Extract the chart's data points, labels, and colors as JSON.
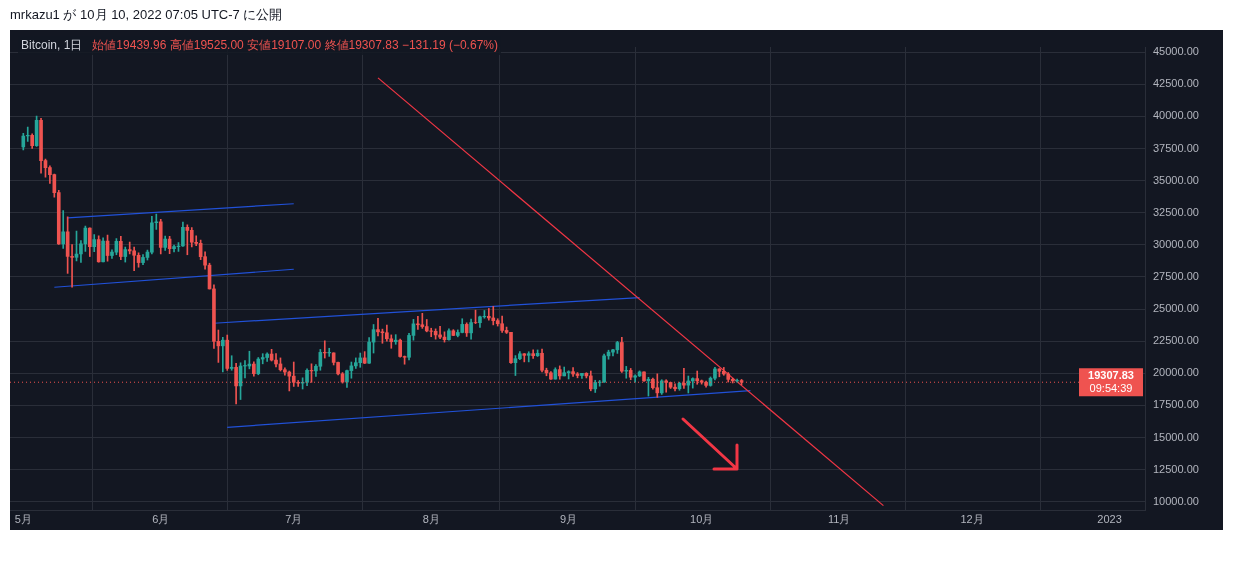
{
  "chart_data": {
    "type": "candlestick",
    "title": "Bitcoin, 1日",
    "subtitle": "始値19439.96 高値19525.00 安値19107.00 終値19307.83 −131.19 (−0.67%)",
    "annotations": [
      "mrkazu1 が 10月 10, 2022 07:05 UTC-7 に公開",
      "09:54:39"
    ],
    "colors": [
      "#26a69a",
      "#26a69a",
      "#ef5350",
      "#26a69a",
      "#ef5350",
      "#ef5350",
      "#ef5350",
      "#ef5350",
      "#ef5350",
      "#26a69a",
      "#ef5350",
      "#ef5350",
      "#26a69a",
      "#26a69a",
      "#26a69a",
      "#ef5350",
      "#26a69a",
      "#ef5350",
      "#26a69a",
      "#ef5350",
      "#26a69a",
      "#26a69a",
      "#ef5350",
      "#26a69a",
      "#ef5350",
      "#ef5350",
      "#ef5350",
      "#26a69a",
      "#26a69a",
      "#26a69a",
      "#26a69a",
      "#ef5350",
      "#26a69a",
      "#ef5350",
      "#26a69a",
      "#26a69a",
      "#26a69a",
      "#ef5350",
      "#ef5350",
      "#ef5350",
      "#ef5350",
      "#ef5350",
      "#ef5350",
      "#ef5350",
      "#ef5350",
      "#26a69a",
      "#ef5350",
      "#26a69a",
      "#ef5350",
      "#26a69a",
      "#26a69a",
      "#26a69a",
      "#ef5350",
      "#26a69a",
      "#26a69a",
      "#26a69a",
      "#ef5350",
      "#ef5350",
      "#ef5350",
      "#ef5350",
      "#ef5350",
      "#ef5350",
      "#ef5350",
      "#26a69a",
      "#26a69a",
      "#ef5350",
      "#26a69a",
      "#26a69a",
      "#ef5350",
      "#26a69a",
      "#ef5350",
      "#ef5350",
      "#ef5350",
      "#26a69a",
      "#26a69a",
      "#26a69a",
      "#26a69a",
      "#ef5350",
      "#26a69a",
      "#26a69a",
      "#ef5350",
      "#ef5350",
      "#ef5350",
      "#ef5350",
      "#26a69a",
      "#ef5350",
      "#ef5350",
      "#26a69a",
      "#26a69a",
      "#ef5350",
      "#ef5350",
      "#ef5350",
      "#ef5350",
      "#ef5350",
      "#ef5350",
      "#ef5350",
      "#26a69a",
      "#ef5350",
      "#26a69a",
      "#26a69a",
      "#ef5350",
      "#26a69a",
      "#ef5350",
      "#26a69a",
      "#26a69a",
      "#ef5350",
      "#ef5350",
      "#ef5350",
      "#ef5350",
      "#ef5350",
      "#ef5350",
      "#26a69a",
      "#26a69a",
      "#ef5350",
      "#26a69a",
      "#ef5350",
      "#26a69a",
      "#ef5350",
      "#ef5350",
      "#ef5350",
      "#26a69a",
      "#ef5350",
      "#26a69a",
      "#26a69a",
      "#ef5350",
      "#ef5350",
      "#26a69a",
      "#ef5350",
      "#ef5350",
      "#26a69a",
      "#26a69a",
      "#26a69a",
      "#26a69a",
      "#26a69a",
      "#26a69a",
      "#ef5350",
      "#26a69a",
      "#ef5350",
      "#26a69a",
      "#26a69a",
      "#ef5350",
      "#26a69a",
      "#ef5350",
      "#ef5350",
      "#26a69a",
      "#ef5350",
      "#ef5350",
      "#ef5350",
      "#26a69a",
      "#ef5350",
      "#26a69a",
      "#26a69a",
      "#ef5350",
      "#ef5350",
      "#ef5350",
      "#26a69a",
      "#26a69a",
      "#ef5350",
      "#ef5350",
      "#ef5350",
      "#ef5350",
      "#26a69a",
      "#ef5350"
    ],
    "x": [
      "2022-05-01",
      "2022-05-02",
      "2022-05-03",
      "2022-05-04",
      "2022-05-05",
      "2022-05-06",
      "2022-05-07",
      "2022-05-08",
      "2022-05-09",
      "2022-05-10",
      "2022-05-11",
      "2022-05-12",
      "2022-05-13",
      "2022-05-14",
      "2022-05-15",
      "2022-05-16",
      "2022-05-17",
      "2022-05-18",
      "2022-05-19",
      "2022-05-20",
      "2022-05-21",
      "2022-05-22",
      "2022-05-23",
      "2022-05-24",
      "2022-05-25",
      "2022-05-26",
      "2022-05-27",
      "2022-05-28",
      "2022-05-29",
      "2022-05-30",
      "2022-05-31",
      "2022-06-01",
      "2022-06-02",
      "2022-06-03",
      "2022-06-04",
      "2022-06-05",
      "2022-06-06",
      "2022-06-07",
      "2022-06-08",
      "2022-06-09",
      "2022-06-10",
      "2022-06-11",
      "2022-06-12",
      "2022-06-13",
      "2022-06-14",
      "2022-06-15",
      "2022-06-16",
      "2022-06-17",
      "2022-06-18",
      "2022-06-19",
      "2022-06-20",
      "2022-06-21",
      "2022-06-22",
      "2022-06-23",
      "2022-06-24",
      "2022-06-25",
      "2022-06-26",
      "2022-06-27",
      "2022-06-28",
      "2022-06-29",
      "2022-06-30",
      "2022-07-01",
      "2022-07-02",
      "2022-07-03",
      "2022-07-04",
      "2022-07-05",
      "2022-07-06",
      "2022-07-07",
      "2022-07-08",
      "2022-07-09",
      "2022-07-10",
      "2022-07-11",
      "2022-07-12",
      "2022-07-13",
      "2022-07-14",
      "2022-07-15",
      "2022-07-16",
      "2022-07-17",
      "2022-07-18",
      "2022-07-19",
      "2022-07-20",
      "2022-07-21",
      "2022-07-22",
      "2022-07-23",
      "2022-07-24",
      "2022-07-25",
      "2022-07-26",
      "2022-07-27",
      "2022-07-28",
      "2022-07-29",
      "2022-07-30",
      "2022-07-31",
      "2022-08-01",
      "2022-08-02",
      "2022-08-03",
      "2022-08-04",
      "2022-08-05",
      "2022-08-06",
      "2022-08-07",
      "2022-08-08",
      "2022-08-09",
      "2022-08-10",
      "2022-08-11",
      "2022-08-12",
      "2022-08-13",
      "2022-08-14",
      "2022-08-15",
      "2022-08-16",
      "2022-08-17",
      "2022-08-18",
      "2022-08-19",
      "2022-08-20",
      "2022-08-21",
      "2022-08-22",
      "2022-08-23",
      "2022-08-24",
      "2022-08-25",
      "2022-08-26",
      "2022-08-27",
      "2022-08-28",
      "2022-08-29",
      "2022-08-30",
      "2022-08-31",
      "2022-09-01",
      "2022-09-02",
      "2022-09-03",
      "2022-09-04",
      "2022-09-05",
      "2022-09-06",
      "2022-09-07",
      "2022-09-08",
      "2022-09-09",
      "2022-09-10",
      "2022-09-11",
      "2022-09-12",
      "2022-09-13",
      "2022-09-14",
      "2022-09-15",
      "2022-09-16",
      "2022-09-17",
      "2022-09-18",
      "2022-09-19",
      "2022-09-20",
      "2022-09-21",
      "2022-09-22",
      "2022-09-23",
      "2022-09-24",
      "2022-09-25",
      "2022-09-26",
      "2022-09-27",
      "2022-09-28",
      "2022-09-29",
      "2022-09-30",
      "2022-10-01",
      "2022-10-02",
      "2022-10-03",
      "2022-10-04",
      "2022-10-05",
      "2022-10-06",
      "2022-10-07",
      "2022-10-08",
      "2022-10-09",
      "2022-10-10"
    ],
    "ohlc": [
      [
        37630,
        38680,
        37390,
        38470
      ],
      [
        38470,
        39170,
        38050,
        38530
      ],
      [
        38530,
        38650,
        37500,
        37720
      ],
      [
        37720,
        40020,
        37670,
        39690
      ],
      [
        39690,
        39850,
        35570,
        36550
      ],
      [
        36550,
        36680,
        35260,
        36010
      ],
      [
        36010,
        36150,
        34780,
        35470
      ],
      [
        35470,
        35500,
        33710,
        34060
      ],
      [
        34060,
        34240,
        30030,
        30080
      ],
      [
        30080,
        32660,
        29730,
        31010
      ],
      [
        31010,
        32190,
        27780,
        29100
      ],
      [
        29100,
        30030,
        26700,
        29030
      ],
      [
        29030,
        31080,
        28750,
        29290
      ],
      [
        29290,
        30340,
        28630,
        30080
      ],
      [
        30080,
        31460,
        29480,
        31300
      ],
      [
        31300,
        31330,
        29090,
        29860
      ],
      [
        29860,
        30790,
        29460,
        30420
      ],
      [
        30420,
        30700,
        28650,
        28680
      ],
      [
        28680,
        30550,
        28670,
        30290
      ],
      [
        30290,
        30760,
        28730,
        29170
      ],
      [
        29170,
        29620,
        28950,
        29430
      ],
      [
        29430,
        30480,
        29230,
        30270
      ],
      [
        30270,
        30660,
        28850,
        29090
      ],
      [
        29090,
        29830,
        28660,
        29640
      ],
      [
        29640,
        30220,
        29300,
        29530
      ],
      [
        29530,
        29830,
        28000,
        29190
      ],
      [
        29190,
        29380,
        28260,
        28620
      ],
      [
        28620,
        29250,
        28450,
        29020
      ],
      [
        29020,
        29600,
        28820,
        29440
      ],
      [
        29440,
        32220,
        29300,
        31720
      ],
      [
        31720,
        32400,
        31200,
        31790
      ],
      [
        31790,
        31980,
        29300,
        29800
      ],
      [
        29800,
        30690,
        29570,
        30450
      ],
      [
        30450,
        30670,
        29320,
        29700
      ],
      [
        29700,
        29990,
        29450,
        29860
      ],
      [
        29860,
        30170,
        29490,
        29910
      ],
      [
        29910,
        31770,
        29880,
        31370
      ],
      [
        31370,
        31560,
        29230,
        31130
      ],
      [
        31130,
        31340,
        29840,
        30200
      ],
      [
        30200,
        30700,
        29930,
        30110
      ],
      [
        30110,
        30380,
        28850,
        29080
      ],
      [
        29080,
        29450,
        28100,
        28420
      ],
      [
        28420,
        28570,
        26560,
        26570
      ],
      [
        26570,
        26880,
        21930,
        22490
      ],
      [
        22490,
        23370,
        20850,
        22140
      ],
      [
        22140,
        22800,
        20110,
        22580
      ],
      [
        22580,
        22980,
        20230,
        20380
      ],
      [
        20380,
        21370,
        20240,
        20470
      ],
      [
        20470,
        20770,
        17620,
        19020
      ],
      [
        19020,
        20820,
        17960,
        20570
      ],
      [
        20570,
        21000,
        19640,
        20570
      ],
      [
        20570,
        21720,
        20350,
        20720
      ],
      [
        20720,
        20900,
        19770,
        19970
      ],
      [
        19970,
        21230,
        19890,
        21110
      ],
      [
        21110,
        21530,
        20740,
        21230
      ],
      [
        21230,
        21600,
        20920,
        21500
      ],
      [
        21500,
        21870,
        20960,
        21030
      ],
      [
        21030,
        21540,
        20500,
        20730
      ],
      [
        20730,
        21200,
        20180,
        20280
      ],
      [
        20280,
        20420,
        19850,
        20100
      ],
      [
        20100,
        20180,
        18630,
        19780
      ],
      [
        19780,
        20880,
        18980,
        19300
      ],
      [
        19300,
        19440,
        18980,
        19240
      ],
      [
        19240,
        19650,
        18780,
        19300
      ],
      [
        19300,
        20350,
        19040,
        20230
      ],
      [
        20230,
        20740,
        19300,
        20190
      ],
      [
        20190,
        20680,
        19760,
        20550
      ],
      [
        20550,
        21860,
        20240,
        21630
      ],
      [
        21630,
        22530,
        21190,
        21590
      ],
      [
        21590,
        21950,
        21320,
        21590
      ],
      [
        21590,
        21600,
        20650,
        20850
      ],
      [
        20850,
        20870,
        19880,
        19960
      ],
      [
        19960,
        20060,
        19240,
        19320
      ],
      [
        19320,
        20260,
        18910,
        20210
      ],
      [
        20210,
        20880,
        19620,
        20580
      ],
      [
        20580,
        21200,
        20380,
        20830
      ],
      [
        20830,
        21580,
        20470,
        21200
      ],
      [
        21200,
        21690,
        20760,
        20790
      ],
      [
        20790,
        22790,
        20770,
        22430
      ],
      [
        22430,
        23800,
        21580,
        23400
      ],
      [
        23400,
        24280,
        22910,
        23230
      ],
      [
        23230,
        23440,
        22340,
        23160
      ],
      [
        23160,
        23760,
        22500,
        22690
      ],
      [
        22690,
        22990,
        21950,
        22460
      ],
      [
        22460,
        23010,
        22260,
        22580
      ],
      [
        22580,
        22660,
        21250,
        21310
      ],
      [
        21310,
        21350,
        20710,
        21250
      ],
      [
        21250,
        23110,
        21040,
        22950
      ],
      [
        22950,
        24200,
        22580,
        23850
      ],
      [
        23850,
        24440,
        23410,
        23780
      ],
      [
        23780,
        24670,
        23500,
        23640
      ],
      [
        23640,
        24190,
        23230,
        23300
      ],
      [
        23300,
        23510,
        22850,
        23270
      ],
      [
        23270,
        23460,
        22660,
        22990
      ],
      [
        22990,
        23650,
        22690,
        22820
      ],
      [
        22820,
        23230,
        22430,
        22620
      ],
      [
        22620,
        23470,
        22590,
        23310
      ],
      [
        23310,
        23400,
        22930,
        22950
      ],
      [
        22950,
        23380,
        22840,
        23180
      ],
      [
        23180,
        24250,
        23150,
        23810
      ],
      [
        23810,
        23930,
        22870,
        23150
      ],
      [
        23150,
        24230,
        22660,
        23950
      ],
      [
        23950,
        24920,
        23870,
        23940
      ],
      [
        23940,
        24460,
        23580,
        24400
      ],
      [
        24400,
        24890,
        24290,
        24440
      ],
      [
        24440,
        25050,
        24140,
        24310
      ],
      [
        24310,
        25210,
        23770,
        24100
      ],
      [
        24100,
        24250,
        23680,
        23860
      ],
      [
        23860,
        24450,
        23180,
        23340
      ],
      [
        23340,
        23600,
        23100,
        23190
      ],
      [
        23190,
        23200,
        20780,
        20830
      ],
      [
        20830,
        21380,
        19830,
        21140
      ],
      [
        21140,
        21690,
        21060,
        21520
      ],
      [
        21520,
        21540,
        20890,
        21400
      ],
      [
        21400,
        21680,
        20890,
        21530
      ],
      [
        21530,
        21820,
        21160,
        21370
      ],
      [
        21370,
        21820,
        21310,
        21560
      ],
      [
        21560,
        21880,
        20110,
        20240
      ],
      [
        20240,
        20400,
        19810,
        20040
      ],
      [
        20040,
        20140,
        19520,
        19550
      ],
      [
        19550,
        20430,
        19550,
        20290
      ],
      [
        20290,
        20580,
        19540,
        19800
      ],
      [
        19800,
        20490,
        19800,
        20050
      ],
      [
        20050,
        20200,
        19560,
        20130
      ],
      [
        20130,
        20440,
        19750,
        19950
      ],
      [
        19950,
        20060,
        19650,
        19830
      ],
      [
        19830,
        20000,
        19600,
        20000
      ],
      [
        20000,
        20050,
        19640,
        19800
      ],
      [
        19800,
        20180,
        18640,
        18790
      ],
      [
        18790,
        19460,
        18510,
        19290
      ],
      [
        19290,
        19450,
        19000,
        19320
      ],
      [
        19320,
        21500,
        19300,
        21360
      ],
      [
        21360,
        21800,
        21100,
        21650
      ],
      [
        21650,
        21860,
        21350,
        21830
      ],
      [
        21830,
        22490,
        21550,
        22400
      ],
      [
        22400,
        22800,
        20080,
        20170
      ],
      [
        20170,
        20540,
        19620,
        20230
      ],
      [
        20230,
        20380,
        19500,
        19700
      ],
      [
        19700,
        19890,
        19320,
        19800
      ],
      [
        19800,
        20190,
        19750,
        20110
      ],
      [
        20110,
        20110,
        19370,
        19420
      ],
      [
        19420,
        19690,
        18230,
        19540
      ],
      [
        19540,
        19630,
        18760,
        18880
      ],
      [
        18880,
        19960,
        18130,
        18480
      ],
      [
        18480,
        19500,
        18360,
        19410
      ],
      [
        19410,
        19500,
        18530,
        19290
      ],
      [
        19290,
        19310,
        18820,
        18920
      ],
      [
        18920,
        19180,
        18630,
        18800
      ],
      [
        18800,
        19310,
        18680,
        19220
      ],
      [
        19220,
        20380,
        18820,
        19080
      ],
      [
        19080,
        19790,
        18470,
        19410
      ],
      [
        19410,
        19650,
        18850,
        19590
      ],
      [
        19590,
        20180,
        19150,
        19420
      ],
      [
        19420,
        19480,
        19160,
        19310
      ],
      [
        19310,
        19400,
        18920,
        19060
      ],
      [
        19060,
        19720,
        19000,
        19620
      ],
      [
        19620,
        20470,
        19490,
        20340
      ],
      [
        20340,
        20370,
        19730,
        20160
      ],
      [
        20160,
        20460,
        19850,
        19950
      ],
      [
        19950,
        20060,
        19320,
        19530
      ],
      [
        19530,
        19620,
        19250,
        19420
      ],
      [
        19420,
        19560,
        19320,
        19440
      ],
      [
        19439.96,
        19525,
        19107,
        19307.83
      ]
    ],
    "series": [
      {
        "type": "line",
        "color": "#f23645",
        "x": [
          "2022-07-20",
          "2022-11-11"
        ],
        "values": [
          43000,
          9700
        ]
      },
      {
        "type": "line",
        "color": "#2151d8",
        "x": [
          "2022-05-11",
          "2022-07-01"
        ],
        "values": [
          32100,
          33200
        ]
      },
      {
        "type": "line",
        "color": "#2151d8",
        "x": [
          "2022-05-08",
          "2022-07-01"
        ],
        "values": [
          26700,
          28100
        ]
      },
      {
        "type": "line",
        "color": "#2151d8",
        "x": [
          "2022-06-13",
          "2022-09-17"
        ],
        "values": [
          23900,
          25900
        ]
      },
      {
        "type": "line",
        "color": "#2151d8",
        "x": [
          "2022-06-16",
          "2022-10-12"
        ],
        "values": [
          15800,
          18650
        ]
      }
    ],
    "ref_lines": [
      {
        "axis": "y",
        "value": 19307.83,
        "label": "19307.83",
        "color": "#ef5350",
        "line_style": "dotted"
      }
    ],
    "xlim": [
      "2022-04-28",
      "2023-01-09"
    ],
    "xticks": [
      {
        "value": "2022-05-01",
        "label": "5月"
      },
      {
        "value": "2022-06-01",
        "label": "6月"
      },
      {
        "value": "2022-07-01",
        "label": "7月"
      },
      {
        "value": "2022-08-01",
        "label": "8月"
      },
      {
        "value": "2022-09-01",
        "label": "9月"
      },
      {
        "value": "2022-10-01",
        "label": "10月"
      },
      {
        "value": "2022-11-01",
        "label": "11月"
      },
      {
        "value": "2022-12-01",
        "label": "12月"
      },
      {
        "value": "2023-01-01",
        "label": "2023"
      }
    ],
    "ylim": [
      9300,
      45400
    ],
    "yticks": [
      {
        "value": 10000,
        "label": "10000.00"
      },
      {
        "value": 12500,
        "label": "12500.00"
      },
      {
        "value": 15000,
        "label": "15000.00"
      },
      {
        "value": 17500,
        "label": "17500.00"
      },
      {
        "value": 20000,
        "label": "20000.00"
      },
      {
        "value": 22500,
        "label": "22500.00"
      },
      {
        "value": 25000,
        "label": "25000.00"
      },
      {
        "value": 27500,
        "label": "27500.00"
      },
      {
        "value": 30000,
        "label": "30000.00"
      },
      {
        "value": 32500,
        "label": "32500.00"
      },
      {
        "value": 35000,
        "label": "35000.00"
      },
      {
        "value": 37500,
        "label": "37500.00"
      },
      {
        "value": 40000,
        "label": "40000.00"
      },
      {
        "value": 42500,
        "label": "42500.00"
      },
      {
        "value": 45000,
        "label": "45000.00"
      }
    ],
    "grid": true
  }
}
